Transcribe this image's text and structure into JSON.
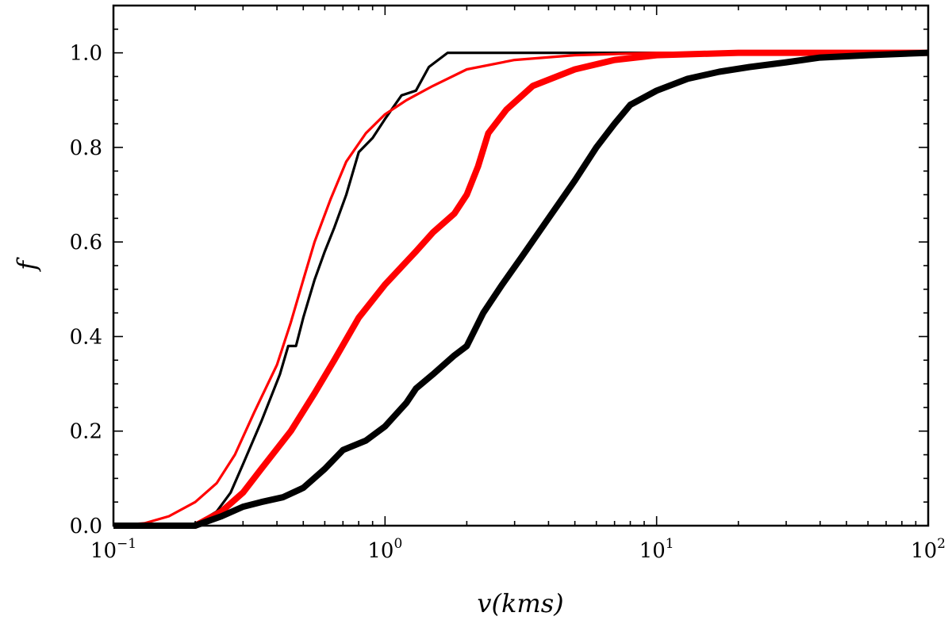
{
  "chart_data": {
    "type": "line",
    "title": "",
    "xlabel": "v(kms)",
    "ylabel": "f",
    "xscale": "log",
    "xlim": [
      0.1,
      100
    ],
    "ylim": [
      0.0,
      1.1
    ],
    "legend": "none",
    "grid": false,
    "x_ticks": [
      {
        "value": 0.1,
        "base": "10",
        "exp": "−1"
      },
      {
        "value": 1,
        "base": "10",
        "exp": "0"
      },
      {
        "value": 10,
        "base": "10",
        "exp": "1"
      },
      {
        "value": 100,
        "base": "10",
        "exp": "2"
      }
    ],
    "y_ticks": [
      {
        "value": 0.0,
        "label": "0.0"
      },
      {
        "value": 0.2,
        "label": "0.2"
      },
      {
        "value": 0.4,
        "label": "0.4"
      },
      {
        "value": 0.6,
        "label": "0.6"
      },
      {
        "value": 0.8,
        "label": "0.8"
      },
      {
        "value": 1.0,
        "label": "1.0"
      }
    ],
    "series": [
      {
        "name": "thin-black",
        "color": "#000000",
        "weight": "thin",
        "points": [
          [
            0.1,
            0
          ],
          [
            0.19,
            0
          ],
          [
            0.21,
            0.01
          ],
          [
            0.24,
            0.03
          ],
          [
            0.27,
            0.07
          ],
          [
            0.3,
            0.13
          ],
          [
            0.35,
            0.22
          ],
          [
            0.41,
            0.32
          ],
          [
            0.44,
            0.38
          ],
          [
            0.47,
            0.38
          ],
          [
            0.5,
            0.44
          ],
          [
            0.55,
            0.52
          ],
          [
            0.6,
            0.58
          ],
          [
            0.65,
            0.63
          ],
          [
            0.72,
            0.7
          ],
          [
            0.8,
            0.79
          ],
          [
            0.9,
            0.82
          ],
          [
            1.0,
            0.86
          ],
          [
            1.15,
            0.91
          ],
          [
            1.3,
            0.92
          ],
          [
            1.45,
            0.97
          ],
          [
            1.7,
            1.0
          ],
          [
            100,
            1.0
          ]
        ]
      },
      {
        "name": "thin-red",
        "color": "#ff0000",
        "weight": "thin",
        "points": [
          [
            0.1,
            0
          ],
          [
            0.13,
            0.005
          ],
          [
            0.16,
            0.02
          ],
          [
            0.2,
            0.05
          ],
          [
            0.24,
            0.09
          ],
          [
            0.28,
            0.15
          ],
          [
            0.33,
            0.24
          ],
          [
            0.4,
            0.34
          ],
          [
            0.45,
            0.43
          ],
          [
            0.5,
            0.52
          ],
          [
            0.55,
            0.6
          ],
          [
            0.63,
            0.69
          ],
          [
            0.72,
            0.77
          ],
          [
            0.85,
            0.83
          ],
          [
            1.0,
            0.87
          ],
          [
            1.2,
            0.9
          ],
          [
            1.5,
            0.93
          ],
          [
            2.0,
            0.965
          ],
          [
            3.0,
            0.985
          ],
          [
            5.0,
            0.995
          ],
          [
            10,
            1.0
          ],
          [
            100,
            1.0
          ]
        ]
      },
      {
        "name": "thick-red",
        "color": "#ff0000",
        "weight": "thick",
        "points": [
          [
            0.1,
            0
          ],
          [
            0.2,
            0.0
          ],
          [
            0.25,
            0.03
          ],
          [
            0.3,
            0.07
          ],
          [
            0.35,
            0.12
          ],
          [
            0.45,
            0.2
          ],
          [
            0.55,
            0.28
          ],
          [
            0.65,
            0.35
          ],
          [
            0.8,
            0.44
          ],
          [
            1.0,
            0.51
          ],
          [
            1.3,
            0.58
          ],
          [
            1.5,
            0.62
          ],
          [
            1.8,
            0.66
          ],
          [
            2.0,
            0.7
          ],
          [
            2.2,
            0.76
          ],
          [
            2.4,
            0.83
          ],
          [
            2.8,
            0.88
          ],
          [
            3.5,
            0.93
          ],
          [
            5.0,
            0.965
          ],
          [
            7.0,
            0.985
          ],
          [
            10,
            0.995
          ],
          [
            20,
            1.0
          ],
          [
            100,
            1.0
          ]
        ]
      },
      {
        "name": "thick-black",
        "color": "#000000",
        "weight": "thick",
        "points": [
          [
            0.1,
            0
          ],
          [
            0.2,
            0.0
          ],
          [
            0.25,
            0.02
          ],
          [
            0.3,
            0.04
          ],
          [
            0.35,
            0.05
          ],
          [
            0.42,
            0.06
          ],
          [
            0.5,
            0.08
          ],
          [
            0.6,
            0.12
          ],
          [
            0.7,
            0.16
          ],
          [
            0.85,
            0.18
          ],
          [
            1.0,
            0.21
          ],
          [
            1.2,
            0.26
          ],
          [
            1.3,
            0.29
          ],
          [
            1.5,
            0.32
          ],
          [
            1.8,
            0.36
          ],
          [
            2.0,
            0.38
          ],
          [
            2.3,
            0.45
          ],
          [
            2.7,
            0.51
          ],
          [
            3.2,
            0.57
          ],
          [
            4.0,
            0.65
          ],
          [
            5.0,
            0.73
          ],
          [
            6.0,
            0.8
          ],
          [
            7.0,
            0.85
          ],
          [
            8.0,
            0.89
          ],
          [
            10,
            0.92
          ],
          [
            13,
            0.945
          ],
          [
            17,
            0.96
          ],
          [
            22,
            0.97
          ],
          [
            30,
            0.98
          ],
          [
            40,
            0.99
          ],
          [
            60,
            0.995
          ],
          [
            100,
            1.0
          ]
        ]
      }
    ]
  }
}
